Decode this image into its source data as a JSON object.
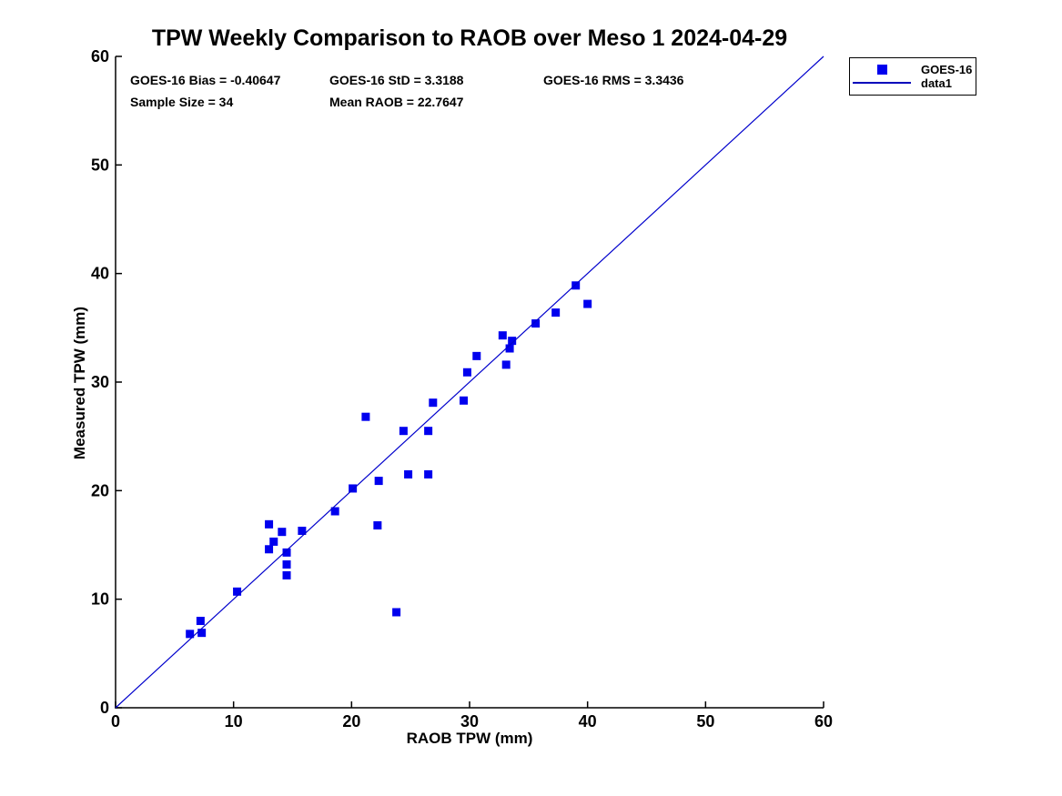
{
  "header": {
    "title": "TPW Weekly Comparison to RAOB over Meso 1 2024-04-29"
  },
  "stats": {
    "bias": "GOES-16 Bias = -0.40647",
    "std": "GOES-16 StD = 3.3188",
    "rms": "GOES-16 RMS = 3.3436",
    "sample_size": "Sample Size = 34",
    "mean_raob": "Mean RAOB = 22.7647"
  },
  "legend": {
    "entries": [
      {
        "label": "GOES-16",
        "marker": "square",
        "color": "#0000EE"
      },
      {
        "label": "data1",
        "marker": "line",
        "color": "#0000BB"
      }
    ]
  },
  "colors": {
    "marker": "#0000EE",
    "identity_line": "#0000CC",
    "axis": "#000000"
  },
  "chart_data": {
    "type": "scatter",
    "title": "TPW Weekly Comparison to RAOB over Meso 1 2024-04-29",
    "xlabel": "RAOB TPW (mm)",
    "ylabel": "Measured TPW (mm)",
    "xlim": [
      0,
      60
    ],
    "ylim": [
      0,
      60
    ],
    "xticks": [
      0,
      10,
      20,
      30,
      40,
      50,
      60
    ],
    "yticks": [
      0,
      10,
      20,
      30,
      40,
      50,
      60
    ],
    "grid": false,
    "legend_position": "outside-top-right",
    "series": [
      {
        "name": "GOES-16",
        "type": "scatter",
        "marker": "square",
        "color": "#0000EE",
        "points": [
          [
            6.3,
            6.8
          ],
          [
            7.2,
            8.0
          ],
          [
            7.3,
            6.9
          ],
          [
            10.3,
            10.7
          ],
          [
            13.0,
            16.9
          ],
          [
            13.0,
            14.6
          ],
          [
            13.4,
            15.3
          ],
          [
            14.1,
            16.2
          ],
          [
            14.5,
            14.3
          ],
          [
            14.5,
            13.2
          ],
          [
            14.5,
            12.2
          ],
          [
            15.8,
            16.3
          ],
          [
            18.6,
            18.1
          ],
          [
            20.1,
            20.2
          ],
          [
            21.2,
            26.8
          ],
          [
            22.2,
            16.8
          ],
          [
            22.3,
            20.9
          ],
          [
            23.8,
            8.8
          ],
          [
            24.4,
            25.5
          ],
          [
            24.8,
            21.5
          ],
          [
            26.5,
            25.5
          ],
          [
            26.5,
            21.5
          ],
          [
            26.9,
            28.1
          ],
          [
            29.5,
            28.3
          ],
          [
            29.8,
            30.9
          ],
          [
            30.6,
            32.4
          ],
          [
            32.8,
            34.3
          ],
          [
            33.1,
            31.6
          ],
          [
            33.4,
            33.1
          ],
          [
            33.6,
            33.8
          ],
          [
            35.6,
            35.4
          ],
          [
            37.3,
            36.4
          ],
          [
            39.0,
            38.9
          ],
          [
            40.0,
            37.2
          ]
        ]
      },
      {
        "name": "data1",
        "type": "line",
        "color": "#0000CC",
        "points": [
          [
            0,
            0
          ],
          [
            60,
            60
          ]
        ]
      }
    ]
  }
}
